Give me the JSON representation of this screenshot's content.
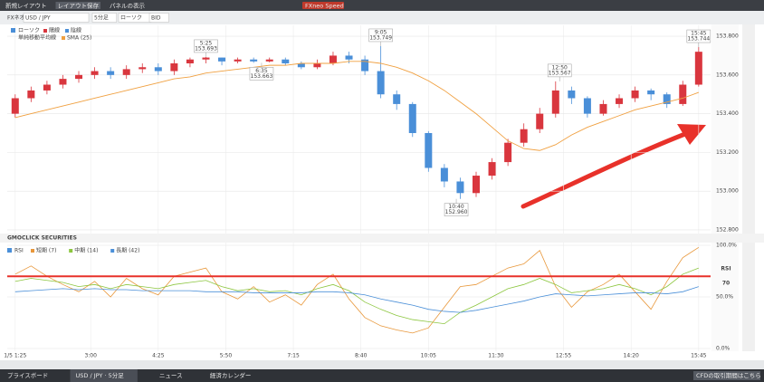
{
  "toolbar": {
    "items": [
      "新規レイアウト",
      "レイアウト保存",
      "パネルの表示"
    ],
    "button": "FXneo Speed"
  },
  "settings_bar": [
    "FXネオ",
    "USD / JPY",
    "5分足",
    "ローソク",
    "BID"
  ],
  "watermark": "GMOCLICK SECURITIES",
  "chart_data": [
    {
      "type": "candlestick",
      "legend": {
        "name": "ローソク",
        "up": {
          "name": "陽線",
          "color": "#d9363e"
        },
        "down": {
          "name": "陰線",
          "color": "#4a8fd8"
        }
      },
      "x": [
        "1:25",
        "1:45",
        "2:05",
        "2:25",
        "2:45",
        "3:05",
        "3:25",
        "3:45",
        "4:05",
        "4:25",
        "4:45",
        "5:05",
        "5:25",
        "5:45",
        "6:05",
        "6:25",
        "6:45",
        "7:05",
        "7:25",
        "7:45",
        "8:05",
        "8:25",
        "8:45",
        "9:05",
        "9:25",
        "9:45",
        "10:05",
        "10:25",
        "10:45",
        "11:05",
        "11:25",
        "11:45",
        "12:05",
        "12:25",
        "12:45",
        "13:05",
        "13:25",
        "13:45",
        "14:05",
        "14:25",
        "14:45",
        "15:05",
        "15:25",
        "15:45"
      ],
      "open": [
        153.4,
        153.48,
        153.52,
        153.55,
        153.58,
        153.6,
        153.62,
        153.6,
        153.63,
        153.64,
        153.62,
        153.66,
        153.68,
        153.69,
        153.67,
        153.68,
        153.67,
        153.68,
        153.66,
        153.64,
        153.66,
        153.7,
        153.68,
        153.62,
        153.5,
        153.45,
        153.3,
        153.12,
        153.05,
        152.99,
        153.08,
        153.15,
        153.25,
        153.32,
        153.4,
        153.52,
        153.48,
        153.4,
        153.45,
        153.48,
        153.52,
        153.5,
        153.45,
        153.55
      ],
      "high": [
        153.5,
        153.54,
        153.57,
        153.6,
        153.62,
        153.64,
        153.64,
        153.65,
        153.66,
        153.66,
        153.68,
        153.69,
        153.693,
        153.69,
        153.69,
        153.69,
        153.69,
        153.69,
        153.67,
        153.68,
        153.72,
        153.72,
        153.7,
        153.749,
        153.52,
        153.46,
        153.31,
        153.14,
        153.07,
        153.1,
        153.17,
        153.27,
        153.35,
        153.43,
        153.567,
        153.54,
        153.49,
        153.47,
        153.5,
        153.54,
        153.53,
        153.51,
        153.57,
        153.744
      ],
      "low": [
        153.38,
        153.46,
        153.5,
        153.53,
        153.56,
        153.58,
        153.58,
        153.58,
        153.61,
        153.6,
        153.6,
        153.64,
        153.66,
        153.65,
        153.66,
        153.663,
        153.665,
        153.65,
        153.63,
        153.63,
        153.65,
        153.66,
        153.6,
        153.48,
        153.42,
        153.28,
        153.1,
        153.02,
        152.96,
        152.97,
        153.06,
        153.13,
        153.23,
        153.3,
        153.38,
        153.45,
        153.38,
        153.39,
        153.43,
        153.46,
        153.47,
        153.43,
        153.44,
        153.54
      ],
      "close": [
        153.48,
        153.52,
        153.55,
        153.58,
        153.6,
        153.62,
        153.6,
        153.63,
        153.64,
        153.62,
        153.66,
        153.68,
        153.69,
        153.67,
        153.68,
        153.67,
        153.68,
        153.66,
        153.64,
        153.66,
        153.7,
        153.68,
        153.62,
        153.5,
        153.45,
        153.3,
        153.12,
        153.05,
        152.99,
        153.08,
        153.15,
        153.25,
        153.32,
        153.4,
        153.52,
        153.48,
        153.4,
        153.45,
        153.48,
        153.52,
        153.5,
        153.45,
        153.55,
        153.72
      ],
      "sma": {
        "group": "単純移動平均線",
        "name": "SMA (25)",
        "color": "#f0a040",
        "values": [
          153.38,
          153.4,
          153.42,
          153.44,
          153.46,
          153.48,
          153.5,
          153.52,
          153.54,
          153.56,
          153.58,
          153.59,
          153.61,
          153.62,
          153.63,
          153.64,
          153.65,
          153.65,
          153.66,
          153.66,
          153.66,
          153.67,
          153.67,
          153.66,
          153.64,
          153.61,
          153.57,
          153.52,
          153.46,
          153.4,
          153.33,
          153.26,
          153.22,
          153.21,
          153.24,
          153.29,
          153.33,
          153.36,
          153.39,
          153.42,
          153.44,
          153.46,
          153.48,
          153.51
        ]
      },
      "ylim": [
        152.781,
        153.847
      ],
      "yticks": [
        {
          "value": 153.8,
          "label": "153.800"
        },
        {
          "value": 153.6,
          "label": "153.600"
        },
        {
          "value": 153.4,
          "label": "153.400"
        },
        {
          "value": 153.2,
          "label": "153.200"
        },
        {
          "value": 153.0,
          "label": "153.000"
        },
        {
          "value": 152.8,
          "label": "152.800"
        }
      ],
      "grid": true,
      "annotations": [
        {
          "time": "5:25",
          "price": 153.693
        },
        {
          "time": "6:35",
          "price": 153.663
        },
        {
          "time": "9:05",
          "price": 153.749
        },
        {
          "time": "10:40",
          "price": {
            "value": 152.96,
            "label": "152.960"
          }
        },
        {
          "time": "12:50",
          "price": 153.567
        },
        {
          "time": "15:45",
          "price": 153.744
        }
      ]
    },
    {
      "type": "line",
      "title": "RSI",
      "series": [
        {
          "name": "短期 (7)",
          "color": "#e8973a",
          "values": [
            72,
            80,
            70,
            62,
            55,
            65,
            50,
            68,
            58,
            52,
            70,
            74,
            78,
            55,
            48,
            60,
            45,
            52,
            42,
            62,
            72,
            48,
            30,
            22,
            18,
            15,
            20,
            40,
            60,
            62,
            70,
            78,
            82,
            95,
            60,
            40,
            55,
            62,
            72,
            55,
            38,
            65,
            88,
            98
          ]
        },
        {
          "name": "中期 (14)",
          "color": "#8cc63f",
          "values": [
            65,
            68,
            66,
            64,
            60,
            62,
            58,
            62,
            60,
            58,
            62,
            64,
            66,
            60,
            56,
            58,
            55,
            56,
            52,
            58,
            62,
            56,
            45,
            38,
            32,
            28,
            26,
            24,
            35,
            42,
            50,
            58,
            62,
            68,
            62,
            54,
            56,
            58,
            62,
            58,
            52,
            60,
            72,
            78
          ]
        },
        {
          "name": "長期 (42)",
          "color": "#4a8fd8",
          "values": [
            55,
            56,
            57,
            58,
            57,
            58,
            57,
            57,
            56,
            56,
            56,
            56,
            55,
            55,
            55,
            54,
            54,
            54,
            54,
            55,
            55,
            54,
            52,
            48,
            45,
            42,
            38,
            36,
            35,
            37,
            40,
            43,
            46,
            50,
            53,
            52,
            51,
            52,
            53,
            54,
            54,
            53,
            55,
            60
          ]
        }
      ],
      "ylim": [
        0,
        100
      ],
      "yticks": [
        {
          "value": 100,
          "label": "100.0%"
        },
        {
          "value": 50,
          "label": "50.0%"
        },
        {
          "value": 0,
          "label": "0.0%"
        }
      ],
      "hline": {
        "value": 70,
        "label": "RSI",
        "color": "#e8312a"
      },
      "xlim": [
        "1:15",
        "16:00"
      ],
      "xticks": [
        "1/5 1:25",
        "3:00",
        "4:25",
        "5:50",
        "7:15",
        "8:40",
        "10:05",
        "11:30",
        "12:55",
        "14:20",
        "15:45"
      ]
    }
  ],
  "footer": {
    "tabs": [
      "プライスボード",
      "USD / JPY · 5分足",
      "ニュース",
      "経済カレンダー"
    ],
    "link": "CFDの取引期間はこちら"
  }
}
